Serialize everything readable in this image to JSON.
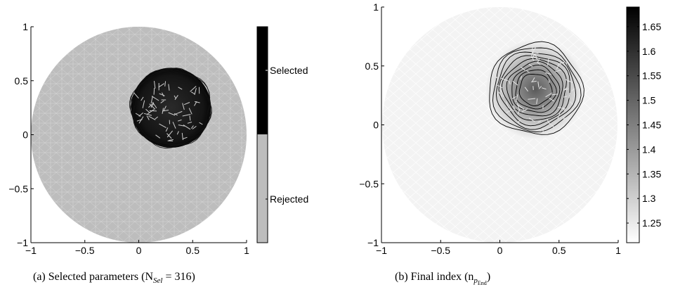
{
  "chart_data": [
    {
      "type": "heatmap",
      "panel": "a",
      "caption": "(a) Selected parameters (N",
      "caption_sub": "Sel",
      "caption_tail": " = 316)",
      "xlim": [
        -1,
        1
      ],
      "ylim": [
        -1,
        1
      ],
      "xticks": [
        -1,
        -0.5,
        0,
        0.5,
        1
      ],
      "yticks": [
        -1,
        -0.5,
        0,
        0.5,
        1
      ],
      "xtick_labels": [
        "−1",
        "−0.5",
        "0",
        "0.5",
        "1"
      ],
      "ytick_labels": [
        "−1",
        "−0.5",
        "0",
        "0.5",
        "1"
      ],
      "domain": {
        "shape": "disk",
        "center": [
          0,
          0
        ],
        "radius": 1
      },
      "region": {
        "center": [
          0.3,
          0.25
        ],
        "radius": 0.37
      },
      "colorbar": {
        "type": "categorical",
        "categories": [
          {
            "label": "Selected",
            "color": "#000000"
          },
          {
            "label": "Rejected",
            "color": "#bdbdbd"
          }
        ]
      },
      "colors": {
        "background": "#bdbdbd",
        "selected": "#0b0b0b",
        "mesh": "#d9d9d9"
      }
    },
    {
      "type": "heatmap",
      "panel": "b",
      "caption": "(b) Final index (n",
      "caption_sub": "p",
      "caption_subsub": "End",
      "caption_tail": ")",
      "xlim": [
        -1,
        1
      ],
      "ylim": [
        -1,
        1
      ],
      "xticks": [
        -1,
        -0.5,
        0,
        0.5,
        1
      ],
      "yticks": [
        -1,
        -0.5,
        0,
        0.5,
        1
      ],
      "xtick_labels": [
        "−1",
        "−0.5",
        "0",
        "0.5",
        "1"
      ],
      "ytick_labels": [
        "−1",
        "−0.5",
        "0",
        "0.5",
        "1"
      ],
      "domain": {
        "shape": "disk",
        "center": [
          0,
          0
        ],
        "radius": 1
      },
      "peak": {
        "center": [
          0.3,
          0.3
        ],
        "value": 1.69,
        "radius": 0.42
      },
      "background_value": 1.21,
      "colorbar": {
        "type": "continuous",
        "range": [
          1.21,
          1.69
        ],
        "ticks": [
          1.25,
          1.3,
          1.35,
          1.4,
          1.45,
          1.5,
          1.55,
          1.6,
          1.65
        ],
        "tick_labels": [
          "1.25",
          "1.3",
          "1.35",
          "1.4",
          "1.45",
          "1.5",
          "1.55",
          "1.6",
          "1.65"
        ],
        "colormap": "gray-reversed"
      }
    }
  ]
}
